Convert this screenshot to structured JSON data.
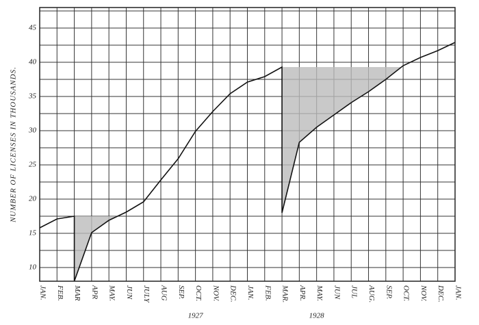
{
  "chart_data": {
    "type": "line",
    "ylabel": "NUMBER OF LICENSES IN THOUSANDS.",
    "year_labels": [
      {
        "x": 9,
        "label": "1927"
      },
      {
        "x": 16,
        "label": "1928"
      }
    ],
    "xlim": [
      0,
      24
    ],
    "xticks": [
      {
        "value": 0,
        "label": "JAN."
      },
      {
        "value": 1,
        "label": "FEB."
      },
      {
        "value": 2,
        "label": "MAR"
      },
      {
        "value": 3,
        "label": "APR"
      },
      {
        "value": 4,
        "label": "MAY."
      },
      {
        "value": 5,
        "label": "JUN"
      },
      {
        "value": 6,
        "label": "JULY"
      },
      {
        "value": 7,
        "label": "AUG"
      },
      {
        "value": 8,
        "label": "SEP."
      },
      {
        "value": 9,
        "label": "OCT."
      },
      {
        "value": 10,
        "label": "NOV."
      },
      {
        "value": 11,
        "label": "DEC."
      },
      {
        "value": 12,
        "label": "JAN."
      },
      {
        "value": 13,
        "label": "FEB."
      },
      {
        "value": 14,
        "label": "MAR."
      },
      {
        "value": 15,
        "label": "APR."
      },
      {
        "value": 16,
        "label": "MAY."
      },
      {
        "value": 17,
        "label": "JUN"
      },
      {
        "value": 18,
        "label": "JUL"
      },
      {
        "value": 19,
        "label": "AUG."
      },
      {
        "value": 20,
        "label": "SEP."
      },
      {
        "value": 21,
        "label": "OCT."
      },
      {
        "value": 22,
        "label": "NOV."
      },
      {
        "value": 23,
        "label": "DEC."
      },
      {
        "value": 24,
        "label": "JAN."
      }
    ],
    "ylim": [
      8,
      48
    ],
    "yticks": [
      10,
      15,
      20,
      25,
      30,
      35,
      40,
      45
    ],
    "grid": true,
    "shade_drops": true,
    "shade_color": "#bbbbbb",
    "series": [
      {
        "color": "#111111",
        "x": [
          0,
          1,
          2,
          2,
          3,
          4,
          5,
          6,
          7,
          8,
          9,
          10,
          11,
          12,
          13,
          14,
          14,
          15,
          16,
          17,
          18,
          19,
          20,
          21,
          22,
          23,
          24
        ],
        "values": [
          15.8,
          17.1,
          17.5,
          8.0,
          15.1,
          16.9,
          18.1,
          19.6,
          22.8,
          25.9,
          29.9,
          32.8,
          35.4,
          37.1,
          37.9,
          39.3,
          18.0,
          28.3,
          30.5,
          32.3,
          34.1,
          35.7,
          37.5,
          39.5,
          40.7,
          41.7,
          42.9
        ]
      }
    ]
  }
}
